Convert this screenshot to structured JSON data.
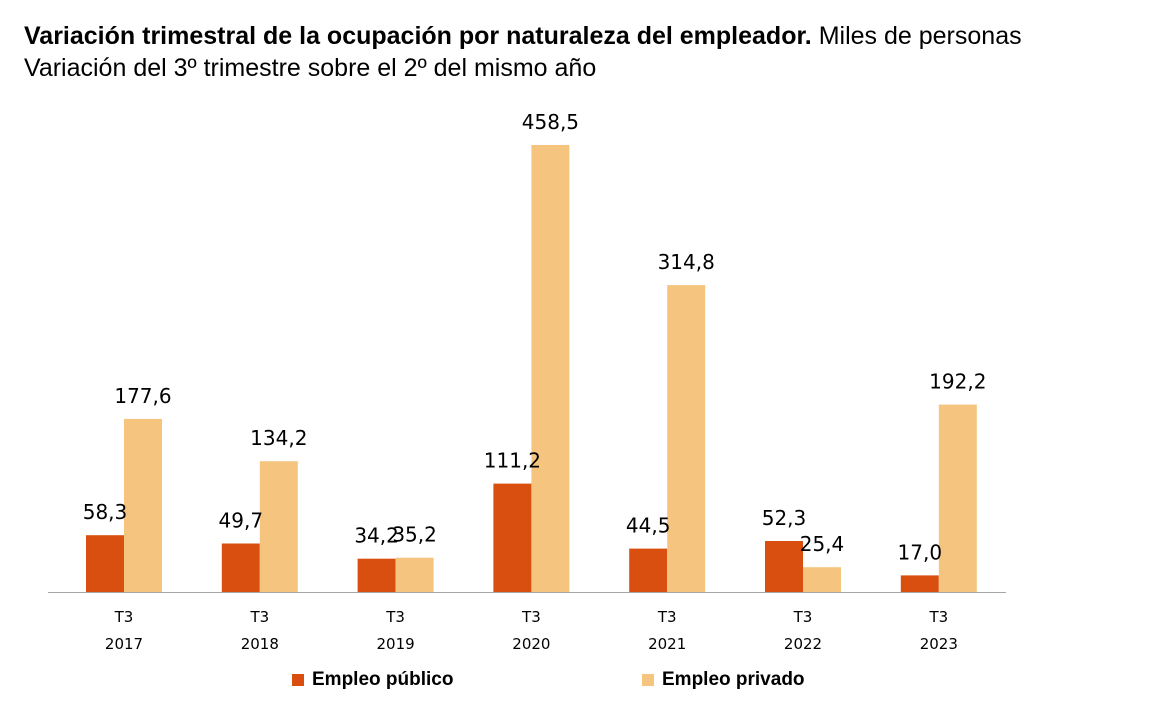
{
  "header": {
    "title_bold": "Variación trimestral de la ocupación por naturaleza del empleador.",
    "title_rest": " Miles de personas",
    "subtitle": "Variación del 3º trimestre sobre el 2º del mismo año"
  },
  "colors": {
    "publico": "#d94f0f",
    "privado": "#f5c47f",
    "axis": "#a6a6a6"
  },
  "chart_data": {
    "type": "bar",
    "title": "Variación trimestral de la ocupación por naturaleza del empleador. Miles de personas",
    "subtitle": "Variación del 3º trimestre sobre el 2º del mismo año",
    "categories": [
      {
        "quarter": "T3",
        "year": "2017"
      },
      {
        "quarter": "T3",
        "year": "2018"
      },
      {
        "quarter": "T3",
        "year": "2019"
      },
      {
        "quarter": "T3",
        "year": "2020"
      },
      {
        "quarter": "T3",
        "year": "2021"
      },
      {
        "quarter": "T3",
        "year": "2022"
      },
      {
        "quarter": "T3",
        "year": "2023"
      }
    ],
    "series": [
      {
        "name": "Empleo público",
        "values": [
          58.3,
          49.7,
          34.2,
          111.2,
          44.5,
          52.3,
          17.0
        ],
        "labels": [
          "58,3",
          "49,7",
          "34,2",
          "111,2",
          "44,5",
          "52,3",
          "17,0"
        ]
      },
      {
        "name": "Empleo privado",
        "values": [
          177.6,
          134.2,
          35.2,
          458.5,
          314.8,
          25.4,
          192.2
        ],
        "labels": [
          "177,6",
          "134,2",
          "35,2",
          "458,5",
          "314,8",
          "25,4",
          "192,2"
        ]
      }
    ],
    "ylim": [
      0,
      458.5
    ],
    "grid": false,
    "legend": "bottom"
  }
}
